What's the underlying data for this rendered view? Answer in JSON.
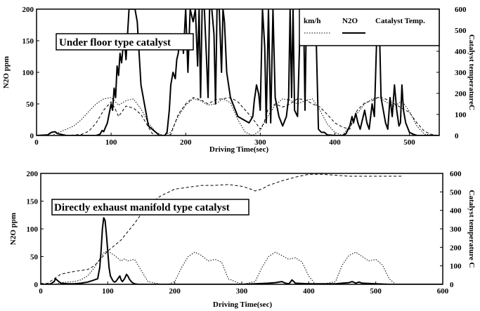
{
  "chart_data": [
    {
      "type": "line",
      "annotation": "Under floor type catalyst",
      "xlabel": "Driving Time(sec)",
      "ylabel": "N2O ppm",
      "y2label": "Catalyst temperatureC",
      "xlim": [
        0,
        540
      ],
      "ylim": [
        0,
        200
      ],
      "y2lim": [
        0,
        600
      ],
      "xticks": [
        0,
        100,
        200,
        300,
        400,
        500
      ],
      "yticks": [
        0,
        50,
        100,
        150,
        200
      ],
      "y2ticks": [
        0,
        100,
        200,
        300,
        400,
        500,
        600
      ],
      "legend": {
        "placement": "top-right",
        "entries": [
          "km/h",
          "N2O",
          "Catalyst Temp."
        ]
      },
      "series": [
        {
          "name": "N2O",
          "style": "solid",
          "axis": "left",
          "x": [
            0,
            15,
            20,
            25,
            28,
            40,
            60,
            80,
            85,
            88,
            90,
            95,
            100,
            102,
            104,
            106,
            108,
            110,
            112,
            114,
            116,
            118,
            120,
            122,
            124,
            126,
            128,
            130,
            132,
            135,
            140,
            150,
            165,
            172,
            175,
            178,
            180,
            183,
            186,
            188,
            190,
            192,
            195,
            197,
            200,
            203,
            206,
            210,
            213,
            216,
            218,
            220,
            222,
            225,
            228,
            230,
            232,
            235,
            238,
            240,
            242,
            245,
            248,
            250,
            252,
            255,
            260,
            270,
            285,
            290,
            292,
            295,
            298,
            300,
            303,
            306,
            308,
            311,
            314,
            317,
            320,
            325,
            330,
            335,
            338,
            340,
            342,
            344,
            346,
            350,
            354,
            356,
            358,
            360,
            362,
            364,
            366,
            368,
            370,
            372,
            374,
            378,
            382,
            386,
            390,
            400,
            410,
            415,
            420,
            423,
            425,
            428,
            431,
            434,
            437,
            440,
            443,
            446,
            450,
            453,
            456,
            458,
            460,
            462,
            465,
            468,
            471,
            474,
            477,
            480,
            483,
            486,
            488,
            490,
            492,
            495,
            500,
            505,
            510,
            520,
            530,
            540
          ],
          "y": [
            0,
            1,
            5,
            6,
            3,
            0,
            0,
            0,
            2,
            8,
            6,
            20,
            50,
            40,
            75,
            60,
            110,
            95,
            130,
            115,
            140,
            150,
            120,
            160,
            200,
            200,
            200,
            200,
            200,
            180,
            80,
            15,
            0,
            0,
            5,
            40,
            80,
            100,
            90,
            120,
            130,
            150,
            160,
            130,
            200,
            100,
            200,
            180,
            200,
            110,
            200,
            60,
            200,
            200,
            120,
            60,
            200,
            200,
            160,
            50,
            200,
            200,
            100,
            200,
            180,
            100,
            60,
            30,
            20,
            30,
            55,
            80,
            65,
            40,
            200,
            140,
            20,
            200,
            20,
            200,
            60,
            30,
            15,
            30,
            60,
            200,
            60,
            200,
            40,
            30,
            200,
            200,
            200,
            40,
            200,
            200,
            200,
            200,
            200,
            200,
            200,
            10,
            5,
            5,
            1,
            0,
            0,
            3,
            15,
            30,
            20,
            35,
            20,
            10,
            25,
            40,
            20,
            10,
            50,
            30,
            150,
            200,
            160,
            60,
            40,
            20,
            10,
            60,
            30,
            80,
            40,
            15,
            20,
            80,
            40,
            20,
            5,
            2,
            0,
            0,
            0,
            0
          ]
        },
        {
          "name": "km/h",
          "style": "dotted",
          "axis": "left",
          "x": [
            0,
            20,
            30,
            40,
            50,
            60,
            70,
            80,
            90,
            100,
            110,
            120,
            130,
            140,
            150,
            160,
            170,
            180,
            190,
            200,
            210,
            220,
            230,
            240,
            250,
            260,
            270,
            280,
            290,
            300,
            310,
            320,
            330,
            340,
            350,
            360,
            370,
            380,
            390,
            400,
            410,
            420,
            430,
            440,
            450,
            460,
            470,
            480,
            490,
            500,
            510,
            520,
            540
          ],
          "y": [
            0,
            0,
            5,
            10,
            15,
            25,
            38,
            50,
            58,
            60,
            48,
            55,
            58,
            42,
            20,
            5,
            0,
            5,
            30,
            48,
            58,
            55,
            48,
            50,
            58,
            52,
            25,
            5,
            0,
            8,
            30,
            48,
            58,
            56,
            50,
            55,
            58,
            40,
            18,
            5,
            0,
            15,
            35,
            50,
            58,
            60,
            52,
            46,
            55,
            38,
            15,
            2,
            0
          ]
        },
        {
          "name": "Catalyst Temp.",
          "style": "dashed",
          "axis": "right",
          "x": [
            0,
            40,
            60,
            70,
            80,
            90,
            100,
            105,
            110,
            115,
            120,
            130,
            140,
            150,
            155,
            160,
            165,
            170,
            175,
            180,
            190,
            200,
            210,
            220,
            230,
            240,
            250,
            260,
            270,
            280,
            290,
            300,
            305,
            310,
            320,
            330,
            340,
            350,
            360,
            370,
            380,
            390,
            400,
            410,
            420,
            430,
            440,
            450,
            460,
            470,
            480,
            490,
            500,
            510,
            520,
            530,
            540
          ],
          "y": [
            0,
            0,
            5,
            20,
            60,
            120,
            160,
            130,
            90,
            115,
            140,
            130,
            100,
            40,
            10,
            0,
            0,
            0,
            0,
            5,
            100,
            150,
            180,
            170,
            150,
            170,
            175,
            180,
            160,
            120,
            80,
            30,
            60,
            120,
            150,
            135,
            150,
            175,
            170,
            150,
            135,
            100,
            60,
            40,
            30,
            120,
            155,
            165,
            185,
            170,
            150,
            130,
            110,
            60,
            20,
            5,
            0
          ]
        }
      ]
    },
    {
      "type": "line",
      "annotation": "Directly exhaust manifold type catalyst",
      "xlabel": "Driving Time(sec)",
      "ylabel": "N2O ppm",
      "y2label": "Catalyst temperature C",
      "xlim": [
        0,
        600
      ],
      "ylim": [
        0,
        200
      ],
      "y2lim": [
        0,
        600
      ],
      "xticks": [
        0,
        100,
        200,
        300,
        400,
        500,
        600
      ],
      "yticks": [
        0,
        50,
        100,
        150,
        200
      ],
      "y2ticks": [
        0,
        100,
        200,
        300,
        400,
        500,
        600
      ],
      "series": [
        {
          "name": "N2O",
          "style": "solid",
          "axis": "left",
          "x": [
            0,
            10,
            15,
            20,
            22,
            25,
            30,
            40,
            50,
            60,
            70,
            75,
            80,
            85,
            88,
            90,
            92,
            94,
            96,
            98,
            100,
            102,
            104,
            106,
            108,
            110,
            112,
            115,
            118,
            120,
            122,
            125,
            128,
            130,
            132,
            135,
            138,
            140,
            145,
            160,
            200,
            250,
            280,
            300,
            320,
            340,
            350,
            360,
            365,
            370,
            372,
            375,
            380,
            400,
            440,
            450,
            460,
            465,
            470,
            475,
            480,
            500,
            520,
            600
          ],
          "y": [
            0,
            0,
            1,
            5,
            10,
            7,
            2,
            1,
            1,
            2,
            4,
            6,
            8,
            10,
            30,
            60,
            100,
            120,
            115,
            90,
            60,
            30,
            15,
            10,
            6,
            4,
            5,
            10,
            15,
            8,
            5,
            10,
            18,
            15,
            10,
            5,
            2,
            1,
            0,
            0,
            0,
            0,
            0,
            0,
            1,
            2,
            3,
            5,
            2,
            1,
            3,
            8,
            2,
            1,
            1,
            2,
            3,
            5,
            2,
            4,
            2,
            1,
            0,
            0
          ]
        },
        {
          "name": "km/h",
          "style": "dotted",
          "axis": "left",
          "x": [
            0,
            20,
            30,
            50,
            60,
            70,
            80,
            90,
            95,
            100,
            110,
            120,
            125,
            130,
            140,
            150,
            160,
            180,
            190,
            200,
            210,
            220,
            230,
            240,
            250,
            260,
            270,
            280,
            300,
            320,
            330,
            340,
            350,
            360,
            370,
            380,
            390,
            400,
            410,
            420,
            440,
            450,
            460,
            470,
            480,
            490,
            500,
            510,
            520,
            530,
            600
          ],
          "y": [
            0,
            0,
            3,
            5,
            8,
            15,
            30,
            50,
            58,
            60,
            52,
            42,
            46,
            42,
            45,
            25,
            5,
            0,
            0,
            5,
            30,
            50,
            58,
            52,
            42,
            45,
            40,
            10,
            0,
            5,
            30,
            50,
            58,
            52,
            45,
            48,
            40,
            15,
            0,
            0,
            5,
            35,
            52,
            58,
            50,
            42,
            45,
            35,
            10,
            0,
            0
          ]
        },
        {
          "name": "Catalyst Temp.",
          "style": "dashed",
          "axis": "right",
          "x": [
            0,
            10,
            20,
            30,
            50,
            70,
            80,
            90,
            100,
            110,
            120,
            140,
            160,
            180,
            200,
            220,
            240,
            260,
            280,
            300,
            310,
            320,
            330,
            340,
            360,
            380,
            400,
            420,
            440,
            460,
            480,
            500,
            520,
            540
          ],
          "y": [
            5,
            5,
            30,
            55,
            70,
            80,
            100,
            140,
            180,
            210,
            240,
            330,
            430,
            480,
            515,
            525,
            535,
            535,
            540,
            530,
            520,
            505,
            515,
            535,
            560,
            580,
            595,
            595,
            590,
            585,
            585,
            585,
            585,
            585
          ]
        }
      ]
    }
  ]
}
